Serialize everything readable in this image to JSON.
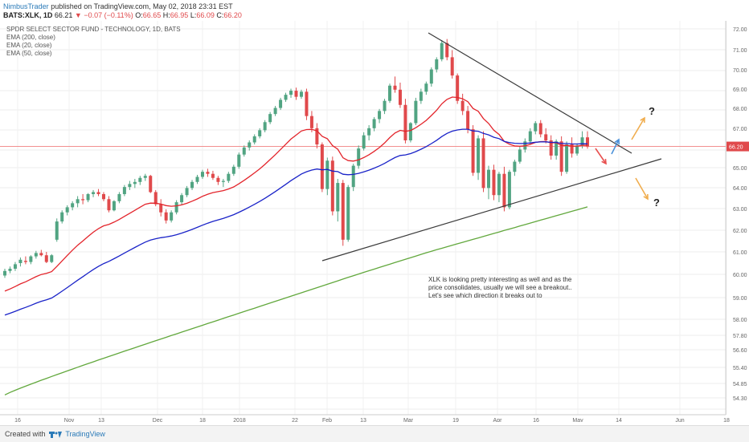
{
  "header": {
    "publisher": "NimbusTrader",
    "published_text": " published on TradingView.com, May 02, 2018 23:31 EST",
    "symbol": "BATS:XLK, 1D",
    "price": "66.21",
    "change": "▼ −0.07 (−0.11%)",
    "o_label": "O:",
    "o_value": "66.65",
    "h_label": "H:",
    "h_value": "66.95",
    "l_label": "L:",
    "l_value": "66.09",
    "c_label": "C:",
    "c_value": "66.20"
  },
  "legend": {
    "title": "SPDR SELECT SECTOR FUND - TECHNOLOGY, 1D, BATS",
    "ema200": "EMA (200, close)",
    "ema20": "EMA (20, close)",
    "ema50": "EMA (50, close)"
  },
  "footer": {
    "created_with": "Created with",
    "brand": "TradingView"
  },
  "colors": {
    "up": "#51a482",
    "down": "#e0494b",
    "ema20": "#e3242b",
    "ema50": "#1a23c8",
    "ema200": "#62a83d",
    "trendline": "#3a3a3a",
    "arrow_orange": "#f0ad4e",
    "arrow_red": "#e8504f",
    "arrow_blue": "#4a90d9",
    "price_line": "#f08080",
    "price_tag": "#e0494b"
  },
  "chart_data": {
    "type": "candlestick",
    "y_ticks": [
      "72.00",
      "71.00",
      "70.00",
      "69.00",
      "68.00",
      "67.00",
      "66.00",
      "65.00",
      "64.00",
      "63.00",
      "62.00",
      "61.00",
      "60.00",
      "59.00",
      "58.00",
      "57.80",
      "56.60",
      "55.40",
      "54.85",
      "54.30"
    ],
    "x_ticks": [
      "16",
      "Nov",
      "13",
      "Dec",
      "18",
      "2018",
      "22",
      "Feb",
      "13",
      "Mar",
      "19",
      "Apr",
      "16",
      "May",
      "14",
      "Jun",
      "18"
    ],
    "current_price": "66.20",
    "annotation": "XLK is looking pretty interesting as well and as the price consolidates, usually we will see a breakout.. Let's see which direction it breaks out to",
    "question_marks": [
      "?",
      "?"
    ],
    "candles": [
      [
        59.95,
        60.25,
        59.85,
        60.15
      ],
      [
        60.15,
        60.35,
        60.05,
        60.25
      ],
      [
        60.25,
        60.55,
        60.15,
        60.45
      ],
      [
        60.5,
        60.75,
        60.35,
        60.65
      ],
      [
        60.6,
        60.8,
        60.45,
        60.55
      ],
      [
        60.55,
        60.85,
        60.45,
        60.8
      ],
      [
        60.8,
        61.05,
        60.7,
        60.95
      ],
      [
        60.95,
        61.1,
        60.8,
        60.85
      ],
      [
        60.85,
        61.0,
        60.5,
        60.55
      ],
      [
        60.55,
        60.9,
        60.5,
        60.85
      ],
      [
        61.6,
        62.65,
        61.5,
        62.5
      ],
      [
        62.5,
        63.05,
        62.4,
        62.95
      ],
      [
        62.95,
        63.3,
        62.8,
        63.2
      ],
      [
        63.2,
        63.5,
        63.05,
        63.4
      ],
      [
        63.4,
        63.75,
        63.2,
        63.6
      ],
      [
        63.6,
        63.85,
        63.35,
        63.55
      ],
      [
        63.55,
        63.9,
        63.45,
        63.85
      ],
      [
        63.85,
        64.05,
        63.7,
        63.95
      ],
      [
        63.95,
        64.1,
        63.75,
        63.85
      ],
      [
        63.85,
        63.95,
        63.5,
        63.6
      ],
      [
        63.6,
        63.75,
        62.95,
        63.05
      ],
      [
        63.05,
        63.55,
        63.0,
        63.5
      ],
      [
        63.5,
        63.95,
        63.4,
        63.85
      ],
      [
        63.85,
        64.3,
        63.75,
        64.2
      ],
      [
        64.2,
        64.5,
        64.05,
        64.35
      ],
      [
        64.35,
        64.6,
        64.15,
        64.45
      ],
      [
        64.45,
        64.75,
        64.3,
        64.65
      ],
      [
        64.65,
        64.85,
        64.5,
        64.75
      ],
      [
        64.75,
        64.8,
        63.9,
        63.95
      ],
      [
        63.95,
        64.05,
        63.25,
        63.35
      ],
      [
        63.35,
        63.6,
        62.75,
        62.95
      ],
      [
        62.95,
        63.1,
        62.4,
        62.55
      ],
      [
        62.55,
        63.05,
        62.45,
        62.95
      ],
      [
        62.95,
        63.55,
        62.85,
        63.45
      ],
      [
        63.45,
        63.9,
        63.3,
        63.8
      ],
      [
        63.8,
        64.25,
        63.7,
        64.15
      ],
      [
        64.15,
        64.55,
        64.05,
        64.45
      ],
      [
        64.45,
        64.8,
        64.35,
        64.7
      ],
      [
        64.7,
        65.05,
        64.6,
        64.95
      ],
      [
        64.95,
        65.1,
        64.7,
        64.85
      ],
      [
        64.85,
        65.0,
        64.55,
        64.65
      ],
      [
        64.65,
        64.75,
        64.3,
        64.45
      ],
      [
        64.45,
        64.6,
        64.2,
        64.5
      ],
      [
        64.5,
        64.95,
        64.4,
        64.85
      ],
      [
        64.85,
        65.3,
        64.75,
        65.2
      ],
      [
        65.2,
        65.9,
        65.1,
        65.8
      ],
      [
        65.8,
        66.25,
        65.7,
        66.15
      ],
      [
        66.15,
        66.5,
        66.0,
        66.4
      ],
      [
        66.4,
        66.8,
        66.3,
        66.7
      ],
      [
        66.7,
        67.1,
        66.6,
        67.0
      ],
      [
        67.0,
        67.5,
        66.9,
        67.4
      ],
      [
        67.4,
        67.9,
        67.3,
        67.8
      ],
      [
        67.8,
        68.2,
        67.7,
        68.1
      ],
      [
        68.1,
        68.6,
        68.0,
        68.5
      ],
      [
        68.5,
        68.85,
        68.4,
        68.75
      ],
      [
        68.75,
        69.05,
        68.6,
        68.95
      ],
      [
        68.95,
        69.1,
        68.5,
        68.65
      ],
      [
        68.65,
        69.0,
        68.55,
        68.9
      ],
      [
        68.9,
        69.05,
        67.5,
        67.7
      ],
      [
        67.7,
        67.95,
        66.9,
        67.1
      ],
      [
        67.1,
        67.35,
        66.1,
        66.3
      ],
      [
        66.3,
        66.4,
        63.95,
        64.1
      ],
      [
        64.1,
        65.65,
        63.8,
        65.5
      ],
      [
        65.5,
        65.7,
        62.8,
        63.0
      ],
      [
        63.0,
        64.6,
        62.5,
        64.4
      ],
      [
        64.4,
        64.55,
        61.3,
        61.6
      ],
      [
        61.6,
        64.3,
        61.5,
        64.2
      ],
      [
        64.2,
        65.35,
        64.0,
        65.25
      ],
      [
        65.25,
        66.25,
        65.1,
        66.1
      ],
      [
        66.1,
        66.9,
        66.0,
        66.75
      ],
      [
        66.75,
        67.25,
        66.5,
        67.1
      ],
      [
        67.1,
        67.65,
        66.95,
        67.55
      ],
      [
        67.55,
        68.05,
        67.35,
        67.95
      ],
      [
        67.95,
        68.55,
        67.8,
        68.45
      ],
      [
        68.45,
        69.3,
        68.35,
        69.2
      ],
      [
        69.2,
        69.65,
        68.85,
        69.0
      ],
      [
        69.0,
        69.35,
        68.1,
        68.25
      ],
      [
        68.25,
        68.55,
        66.35,
        66.5
      ],
      [
        66.5,
        67.4,
        66.4,
        67.35
      ],
      [
        67.35,
        68.6,
        67.25,
        68.45
      ],
      [
        68.45,
        69.05,
        68.3,
        68.9
      ],
      [
        68.9,
        69.4,
        68.75,
        69.3
      ],
      [
        69.3,
        70.1,
        69.15,
        70.0
      ],
      [
        70.0,
        70.6,
        69.85,
        70.5
      ],
      [
        70.5,
        71.45,
        70.4,
        71.3
      ],
      [
        71.3,
        71.5,
        70.45,
        70.6
      ],
      [
        70.6,
        70.95,
        69.55,
        69.7
      ],
      [
        69.7,
        69.8,
        68.3,
        68.45
      ],
      [
        68.45,
        68.8,
        67.75,
        67.95
      ],
      [
        67.95,
        68.2,
        66.85,
        67.05
      ],
      [
        67.05,
        67.25,
        64.75,
        64.9
      ],
      [
        64.9,
        66.75,
        64.55,
        66.6
      ],
      [
        66.6,
        66.95,
        63.95,
        64.15
      ],
      [
        64.15,
        65.25,
        63.6,
        65.05
      ],
      [
        65.05,
        65.3,
        63.55,
        63.8
      ],
      [
        63.8,
        64.95,
        63.45,
        64.85
      ],
      [
        64.85,
        65.2,
        63.0,
        63.2
      ],
      [
        63.2,
        65.05,
        63.1,
        64.95
      ],
      [
        64.95,
        65.55,
        64.75,
        65.45
      ],
      [
        65.45,
        66.2,
        65.35,
        66.05
      ],
      [
        66.05,
        66.6,
        65.9,
        66.45
      ],
      [
        66.45,
        67.1,
        66.3,
        66.95
      ],
      [
        66.95,
        67.45,
        66.8,
        67.35
      ],
      [
        67.35,
        67.5,
        66.65,
        66.8
      ],
      [
        66.8,
        67.1,
        66.35,
        66.5
      ],
      [
        66.5,
        66.75,
        65.55,
        65.75
      ],
      [
        65.75,
        66.55,
        65.55,
        66.45
      ],
      [
        66.45,
        66.7,
        64.75,
        64.95
      ],
      [
        64.95,
        66.45,
        64.85,
        66.3
      ],
      [
        66.3,
        66.65,
        65.65,
        65.85
      ],
      [
        65.85,
        66.35,
        65.75,
        66.25
      ],
      [
        66.25,
        66.95,
        66.1,
        66.65
      ],
      [
        66.65,
        66.95,
        66.09,
        66.2
      ]
    ]
  }
}
